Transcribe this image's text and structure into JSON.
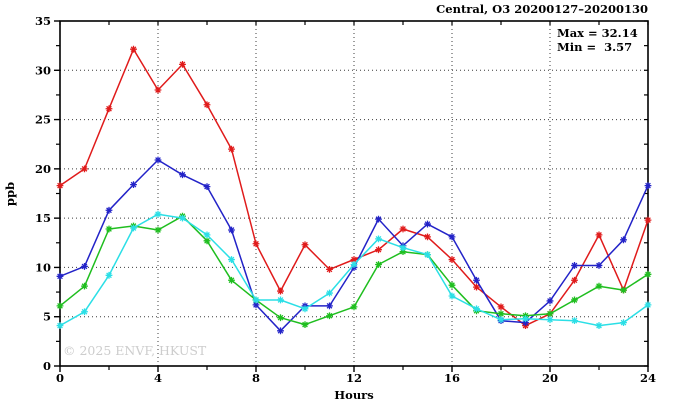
{
  "chart": {
    "watermark": "© 2025 ENVF, HKUST"
  },
  "chart_data": {
    "type": "line",
    "title": "Central, O3 20200127–20200130",
    "xlabel": "Hours",
    "ylabel": "ppb",
    "xlim": [
      0,
      24
    ],
    "ylim": [
      0,
      35
    ],
    "xticks_major": [
      0,
      4,
      8,
      12,
      16,
      20,
      24
    ],
    "xticks_minor": [
      2,
      6,
      10,
      14,
      18,
      22
    ],
    "yticks_major": [
      0,
      5,
      10,
      15,
      20,
      25,
      30,
      35
    ],
    "yticks_minor": [
      2.5,
      7.5,
      12.5,
      17.5,
      22.5,
      27.5,
      32.5
    ],
    "grid_x": [
      4,
      8,
      12,
      16,
      20
    ],
    "grid_y": [
      5,
      10,
      15,
      20,
      25,
      30
    ],
    "grid_on": true,
    "legend": "none",
    "max": 32.14,
    "min": 3.57,
    "annotations": [
      "Max = 32.14",
      "Min =  3.57"
    ],
    "x": [
      0,
      1,
      2,
      3,
      4,
      5,
      6,
      7,
      8,
      9,
      10,
      11,
      12,
      13,
      14,
      15,
      16,
      17,
      18,
      19,
      20,
      21,
      22,
      23,
      24
    ],
    "series": [
      {
        "name": "red-series",
        "color": "#e01b1b",
        "values": [
          18.3,
          20.0,
          26.1,
          32.14,
          28.0,
          30.6,
          26.5,
          22.0,
          12.4,
          7.6,
          12.3,
          9.8,
          10.8,
          11.8,
          13.9,
          13.1,
          10.8,
          8.0,
          6.0,
          4.1,
          5.3,
          8.7,
          13.3,
          7.7,
          14.8
        ]
      },
      {
        "name": "blue-series",
        "color": "#2323c8",
        "values": [
          9.1,
          10.1,
          15.8,
          18.4,
          20.9,
          19.4,
          18.2,
          13.8,
          6.2,
          3.57,
          6.1,
          6.1,
          10.0,
          14.9,
          12.2,
          14.4,
          13.1,
          8.7,
          4.6,
          4.4,
          6.6,
          10.2,
          10.2,
          12.8,
          18.3
        ]
      },
      {
        "name": "green-series",
        "color": "#1fbe1f",
        "values": [
          6.1,
          8.1,
          13.9,
          14.2,
          13.8,
          15.2,
          12.7,
          8.7,
          6.7,
          4.9,
          4.2,
          5.1,
          6.0,
          10.3,
          11.6,
          11.3,
          8.2,
          5.6,
          5.3,
          5.1,
          5.3,
          6.7,
          8.1,
          7.7,
          9.3
        ]
      },
      {
        "name": "cyan-series",
        "color": "#2bdfe6",
        "values": [
          4.1,
          5.5,
          9.2,
          14.0,
          15.4,
          15.0,
          13.3,
          10.8,
          6.7,
          6.7,
          5.8,
          7.4,
          10.3,
          12.9,
          12.0,
          11.3,
          7.1,
          5.8,
          4.7,
          4.8,
          4.7,
          4.6,
          4.1,
          4.4,
          6.2
        ]
      }
    ]
  }
}
